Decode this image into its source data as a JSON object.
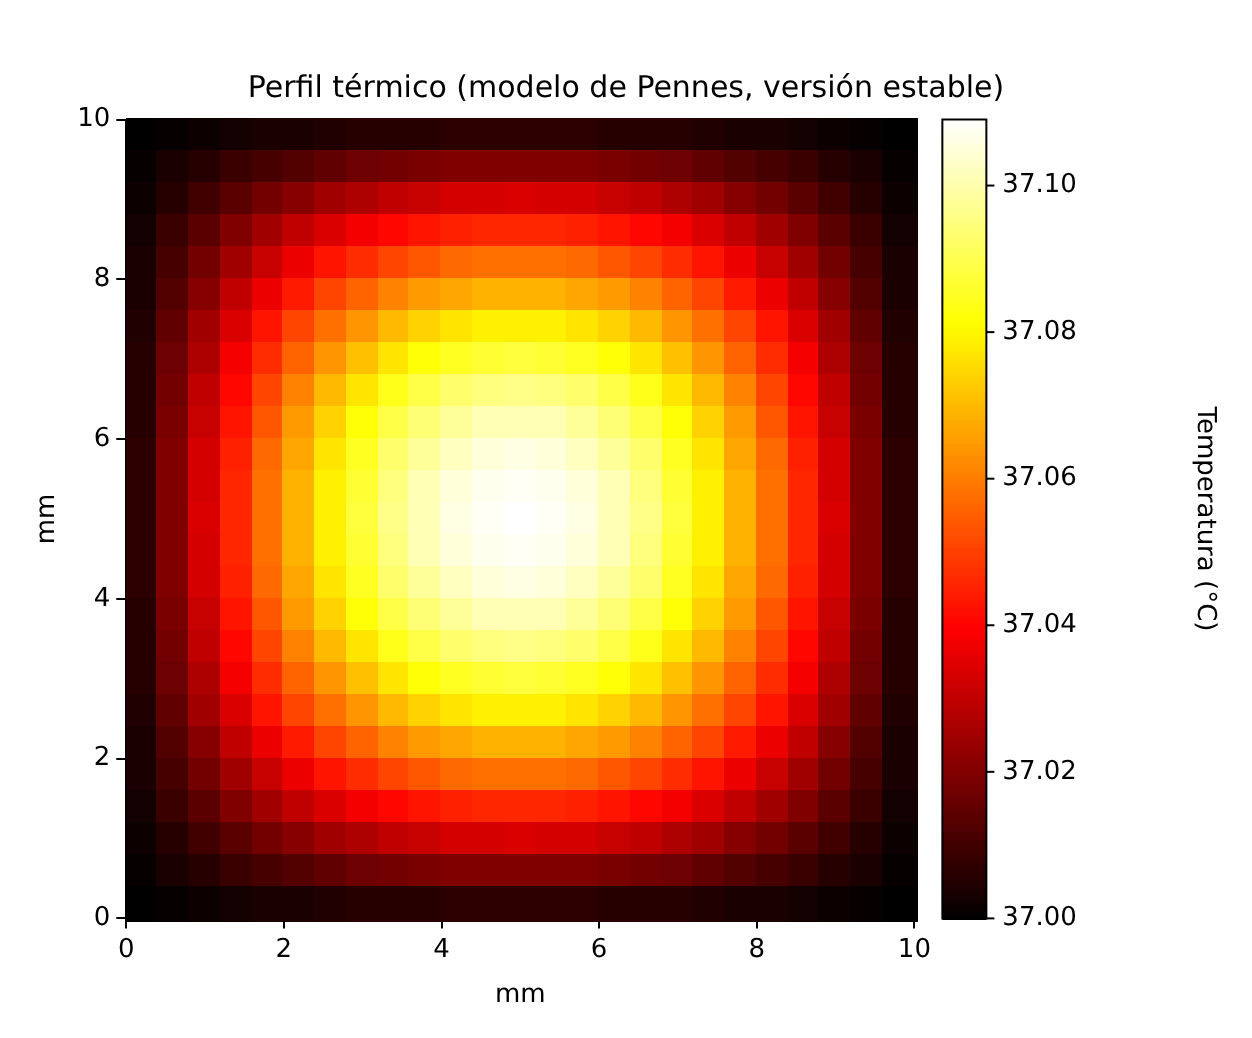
{
  "chart_data": {
    "type": "heatmap",
    "title": "Perfil térmico (modelo de Pennes, versión estable)",
    "xlabel": "mm",
    "ylabel": "mm",
    "clabel": "Temperatura (°C)",
    "xlim": [
      0,
      10
    ],
    "ylim": [
      0,
      10
    ],
    "xticks": [
      0,
      2,
      4,
      6,
      8,
      10
    ],
    "yticks": [
      0,
      2,
      4,
      6,
      8,
      10
    ],
    "clim": [
      37.0,
      37.109
    ],
    "cticks": [
      {
        "value": 37.0,
        "label": "37.00"
      },
      37.02,
      37.04,
      37.06,
      37.08,
      {
        "value": 37.1,
        "label": "37.10"
      }
    ],
    "cells": [
      [
        37.0,
        37.001,
        37.002,
        37.003,
        37.004,
        37.004,
        37.005,
        37.006,
        37.006,
        37.006,
        37.007,
        37.007,
        37.007,
        37.007,
        37.007,
        37.006,
        37.006,
        37.006,
        37.005,
        37.004,
        37.004,
        37.003,
        37.002,
        37.001,
        37.0
      ],
      [
        37.001,
        37.004,
        37.006,
        37.009,
        37.011,
        37.013,
        37.015,
        37.017,
        37.018,
        37.019,
        37.02,
        37.02,
        37.02,
        37.02,
        37.02,
        37.019,
        37.018,
        37.017,
        37.015,
        37.013,
        37.011,
        37.009,
        37.006,
        37.004,
        37.001
      ],
      [
        37.002,
        37.006,
        37.01,
        37.014,
        37.018,
        37.021,
        37.025,
        37.027,
        37.03,
        37.031,
        37.033,
        37.033,
        37.034,
        37.033,
        37.033,
        37.031,
        37.03,
        37.027,
        37.025,
        37.021,
        37.018,
        37.014,
        37.01,
        37.006,
        37.002
      ],
      [
        37.003,
        37.009,
        37.014,
        37.02,
        37.025,
        37.03,
        37.034,
        37.038,
        37.041,
        37.043,
        37.045,
        37.046,
        37.046,
        37.046,
        37.045,
        37.043,
        37.041,
        37.038,
        37.034,
        37.03,
        37.025,
        37.02,
        37.014,
        37.009,
        37.003
      ],
      [
        37.004,
        37.011,
        37.018,
        37.025,
        37.031,
        37.037,
        37.043,
        37.047,
        37.051,
        37.054,
        37.057,
        37.058,
        37.058,
        37.058,
        37.057,
        37.054,
        37.051,
        37.047,
        37.043,
        37.037,
        37.031,
        37.025,
        37.018,
        37.011,
        37.004
      ],
      [
        37.004,
        37.013,
        37.021,
        37.03,
        37.037,
        37.044,
        37.051,
        37.056,
        37.061,
        37.065,
        37.067,
        37.069,
        37.069,
        37.069,
        37.067,
        37.065,
        37.061,
        37.056,
        37.051,
        37.044,
        37.037,
        37.03,
        37.021,
        37.013,
        37.004
      ],
      [
        37.005,
        37.015,
        37.025,
        37.034,
        37.043,
        37.051,
        37.058,
        37.064,
        37.07,
        37.074,
        37.077,
        37.079,
        37.079,
        37.079,
        37.077,
        37.074,
        37.07,
        37.064,
        37.058,
        37.051,
        37.043,
        37.034,
        37.025,
        37.015,
        37.005
      ],
      [
        37.006,
        37.017,
        37.027,
        37.038,
        37.047,
        37.056,
        37.064,
        37.071,
        37.077,
        37.082,
        37.085,
        37.087,
        37.088,
        37.087,
        37.085,
        37.082,
        37.077,
        37.071,
        37.064,
        37.056,
        37.047,
        37.038,
        37.027,
        37.017,
        37.006
      ],
      [
        37.006,
        37.018,
        37.03,
        37.041,
        37.051,
        37.061,
        37.07,
        37.077,
        37.084,
        37.089,
        37.093,
        37.095,
        37.096,
        37.095,
        37.093,
        37.089,
        37.084,
        37.077,
        37.07,
        37.061,
        37.051,
        37.041,
        37.03,
        37.018,
        37.006
      ],
      [
        37.006,
        37.019,
        37.031,
        37.043,
        37.054,
        37.065,
        37.074,
        37.082,
        37.089,
        37.094,
        37.098,
        37.101,
        37.101,
        37.101,
        37.098,
        37.094,
        37.089,
        37.082,
        37.074,
        37.065,
        37.054,
        37.043,
        37.031,
        37.019,
        37.006
      ],
      [
        37.007,
        37.02,
        37.033,
        37.045,
        37.057,
        37.067,
        37.077,
        37.085,
        37.093,
        37.098,
        37.102,
        37.105,
        37.106,
        37.105,
        37.102,
        37.098,
        37.093,
        37.085,
        37.077,
        37.067,
        37.057,
        37.045,
        37.033,
        37.02,
        37.007
      ],
      [
        37.007,
        37.02,
        37.033,
        37.046,
        37.058,
        37.069,
        37.079,
        37.087,
        37.095,
        37.101,
        37.105,
        37.107,
        37.108,
        37.107,
        37.105,
        37.101,
        37.095,
        37.087,
        37.079,
        37.069,
        37.058,
        37.046,
        37.033,
        37.02,
        37.007
      ],
      [
        37.007,
        37.02,
        37.034,
        37.046,
        37.058,
        37.069,
        37.079,
        37.088,
        37.096,
        37.101,
        37.106,
        37.108,
        37.109,
        37.108,
        37.106,
        37.101,
        37.096,
        37.088,
        37.079,
        37.069,
        37.058,
        37.046,
        37.034,
        37.02,
        37.007
      ],
      [
        37.007,
        37.02,
        37.033,
        37.046,
        37.058,
        37.069,
        37.079,
        37.087,
        37.095,
        37.101,
        37.105,
        37.107,
        37.108,
        37.107,
        37.105,
        37.101,
        37.095,
        37.087,
        37.079,
        37.069,
        37.058,
        37.046,
        37.033,
        37.02,
        37.007
      ],
      [
        37.007,
        37.02,
        37.033,
        37.045,
        37.057,
        37.067,
        37.077,
        37.085,
        37.093,
        37.098,
        37.102,
        37.105,
        37.106,
        37.105,
        37.102,
        37.098,
        37.093,
        37.085,
        37.077,
        37.067,
        37.057,
        37.045,
        37.033,
        37.02,
        37.007
      ],
      [
        37.006,
        37.019,
        37.031,
        37.043,
        37.054,
        37.065,
        37.074,
        37.082,
        37.089,
        37.094,
        37.098,
        37.101,
        37.101,
        37.101,
        37.098,
        37.094,
        37.089,
        37.082,
        37.074,
        37.065,
        37.054,
        37.043,
        37.031,
        37.019,
        37.006
      ],
      [
        37.006,
        37.018,
        37.03,
        37.041,
        37.051,
        37.061,
        37.07,
        37.077,
        37.084,
        37.089,
        37.093,
        37.095,
        37.096,
        37.095,
        37.093,
        37.089,
        37.084,
        37.077,
        37.07,
        37.061,
        37.051,
        37.041,
        37.03,
        37.018,
        37.006
      ],
      [
        37.006,
        37.017,
        37.027,
        37.038,
        37.047,
        37.056,
        37.064,
        37.071,
        37.077,
        37.082,
        37.085,
        37.087,
        37.088,
        37.087,
        37.085,
        37.082,
        37.077,
        37.071,
        37.064,
        37.056,
        37.047,
        37.038,
        37.027,
        37.017,
        37.006
      ],
      [
        37.005,
        37.015,
        37.025,
        37.034,
        37.043,
        37.051,
        37.058,
        37.064,
        37.07,
        37.074,
        37.077,
        37.079,
        37.079,
        37.079,
        37.077,
        37.074,
        37.07,
        37.064,
        37.058,
        37.051,
        37.043,
        37.034,
        37.025,
        37.015,
        37.005
      ],
      [
        37.004,
        37.013,
        37.021,
        37.03,
        37.037,
        37.044,
        37.051,
        37.056,
        37.061,
        37.065,
        37.067,
        37.069,
        37.069,
        37.069,
        37.067,
        37.065,
        37.061,
        37.056,
        37.051,
        37.044,
        37.037,
        37.03,
        37.021,
        37.013,
        37.004
      ],
      [
        37.004,
        37.011,
        37.018,
        37.025,
        37.031,
        37.037,
        37.043,
        37.047,
        37.051,
        37.054,
        37.057,
        37.058,
        37.058,
        37.058,
        37.057,
        37.054,
        37.051,
        37.047,
        37.043,
        37.037,
        37.031,
        37.025,
        37.018,
        37.011,
        37.004
      ],
      [
        37.003,
        37.009,
        37.014,
        37.02,
        37.025,
        37.03,
        37.034,
        37.038,
        37.041,
        37.043,
        37.045,
        37.046,
        37.046,
        37.046,
        37.045,
        37.043,
        37.041,
        37.038,
        37.034,
        37.03,
        37.025,
        37.02,
        37.014,
        37.009,
        37.003
      ],
      [
        37.002,
        37.006,
        37.01,
        37.014,
        37.018,
        37.021,
        37.025,
        37.027,
        37.03,
        37.031,
        37.033,
        37.033,
        37.034,
        37.033,
        37.033,
        37.031,
        37.03,
        37.027,
        37.025,
        37.021,
        37.018,
        37.014,
        37.01,
        37.006,
        37.002
      ],
      [
        37.001,
        37.004,
        37.006,
        37.009,
        37.011,
        37.013,
        37.015,
        37.017,
        37.018,
        37.019,
        37.02,
        37.02,
        37.02,
        37.02,
        37.02,
        37.019,
        37.018,
        37.017,
        37.015,
        37.013,
        37.011,
        37.009,
        37.006,
        37.004,
        37.001
      ],
      [
        37.0,
        37.001,
        37.002,
        37.003,
        37.004,
        37.004,
        37.005,
        37.006,
        37.006,
        37.006,
        37.007,
        37.007,
        37.007,
        37.007,
        37.007,
        37.006,
        37.006,
        37.006,
        37.005,
        37.004,
        37.004,
        37.003,
        37.002,
        37.001,
        37.0
      ]
    ]
  }
}
